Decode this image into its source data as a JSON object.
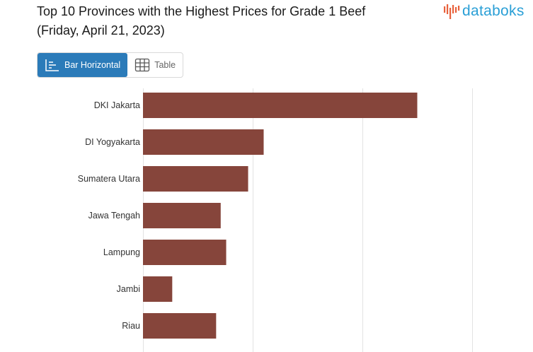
{
  "header": {
    "title_line1": "Top 10 Provinces with the Highest Prices for Grade 1 Beef",
    "title_line2": "(Friday, April 21, 2023)",
    "logo_text": "databoks"
  },
  "tabs": [
    {
      "label": "Bar Horizontal",
      "icon": "bar-chart-icon",
      "active": true
    },
    {
      "label": "Table",
      "icon": "table-icon",
      "active": false
    }
  ],
  "colors": {
    "bar": "#86453b",
    "accent": "#2b7bb9",
    "logo": "#2a9fd6",
    "logo_bars": "#e8613c"
  },
  "chart_data": {
    "type": "bar",
    "orientation": "horizontal",
    "categories": [
      "DKI Jakarta",
      "DI Yogyakarta",
      "Sumatera Utara",
      "Jawa Tengah",
      "Lampung",
      "Jambi",
      "Riau"
    ],
    "values": [
      150000,
      66000,
      57500,
      42500,
      45500,
      16000,
      40000
    ],
    "xlim": [
      0,
      180000
    ],
    "grid": true
  }
}
